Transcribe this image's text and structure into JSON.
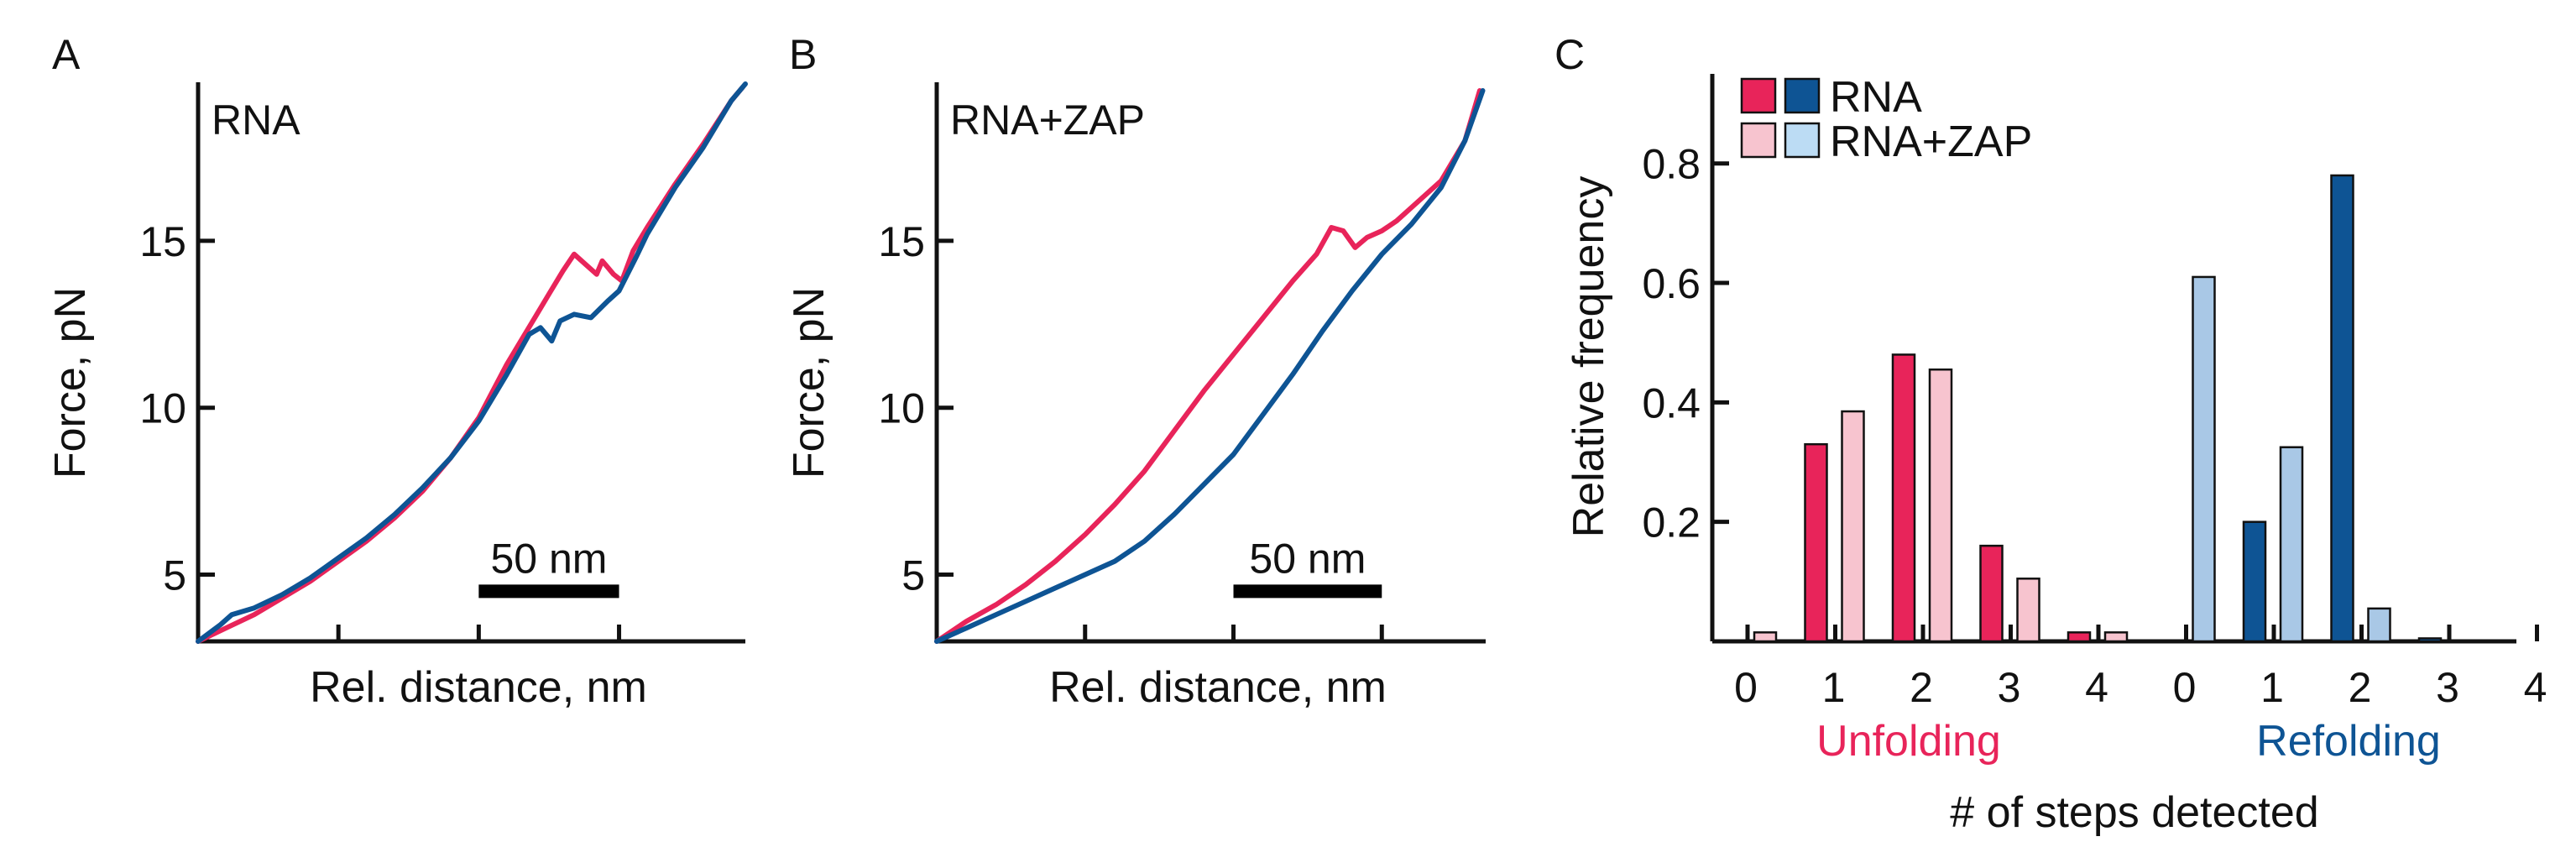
{
  "colors": {
    "unfold": "#e8245a",
    "refold": "#0e5494",
    "unfold_light": "#f7c4cf",
    "refold_light": "#bcdcf4",
    "refold_zap_bar": "#a9c8e6"
  },
  "chart_data": [
    {
      "panel": "A",
      "type": "line",
      "inset_label": "RNA",
      "xlabel": "Rel. distance, nm",
      "ylabel": "Force, pN",
      "ylim": [
        3,
        19.5
      ],
      "xlim": [
        0,
        195
      ],
      "yticks": [
        5,
        10,
        15
      ],
      "xticks": [
        50,
        100,
        150
      ],
      "scale_bar": {
        "label": "50 nm",
        "from": 100,
        "to": 150,
        "y": 4.5
      },
      "series": [
        {
          "name": "unfolding",
          "color_key": "unfold",
          "points": [
            [
              0,
              3.0
            ],
            [
              10,
              3.4
            ],
            [
              20,
              3.8
            ],
            [
              30,
              4.3
            ],
            [
              40,
              4.8
            ],
            [
              50,
              5.4
            ],
            [
              60,
              6.0
            ],
            [
              70,
              6.7
            ],
            [
              80,
              7.5
            ],
            [
              90,
              8.5
            ],
            [
              100,
              9.7
            ],
            [
              105,
              10.5
            ],
            [
              110,
              11.3
            ],
            [
              115,
              12.0
            ],
            [
              120,
              12.7
            ],
            [
              125,
              13.4
            ],
            [
              130,
              14.1
            ],
            [
              134,
              14.6
            ],
            [
              138,
              14.3
            ],
            [
              142,
              14.0
            ],
            [
              144,
              14.4
            ],
            [
              146,
              14.2
            ],
            [
              148,
              14.0
            ],
            [
              151,
              13.8
            ],
            [
              155,
              14.7
            ],
            [
              160,
              15.4
            ],
            [
              170,
              16.7
            ],
            [
              180,
              17.9
            ],
            [
              190,
              19.2
            ],
            [
              194,
              19.6
            ]
          ]
        },
        {
          "name": "refolding",
          "color_key": "refold",
          "points": [
            [
              0,
              3.0
            ],
            [
              8,
              3.5
            ],
            [
              12,
              3.8
            ],
            [
              20,
              4.0
            ],
            [
              30,
              4.4
            ],
            [
              40,
              4.9
            ],
            [
              50,
              5.5
            ],
            [
              60,
              6.1
            ],
            [
              70,
              6.8
            ],
            [
              80,
              7.6
            ],
            [
              90,
              8.5
            ],
            [
              100,
              9.6
            ],
            [
              110,
              11.0
            ],
            [
              118,
              12.2
            ],
            [
              122,
              12.4
            ],
            [
              126,
              12.0
            ],
            [
              129,
              12.6
            ],
            [
              134,
              12.8
            ],
            [
              140,
              12.7
            ],
            [
              146,
              13.2
            ],
            [
              150,
              13.5
            ],
            [
              156,
              14.5
            ],
            [
              160,
              15.2
            ],
            [
              170,
              16.6
            ],
            [
              180,
              17.8
            ],
            [
              190,
              19.2
            ],
            [
              195,
              19.7
            ]
          ]
        }
      ]
    },
    {
      "panel": "B",
      "type": "line",
      "inset_label": "RNA+ZAP",
      "xlabel": "Rel. distance, nm",
      "ylabel": "Force, pN",
      "ylim": [
        3,
        19.5
      ],
      "xlim": [
        0,
        185
      ],
      "yticks": [
        5,
        10,
        15
      ],
      "xticks": [
        50,
        100,
        150
      ],
      "scale_bar": {
        "label": "50 nm",
        "from": 100,
        "to": 150,
        "y": 4.5
      },
      "series": [
        {
          "name": "unfolding",
          "color_key": "unfold",
          "points": [
            [
              0,
              3.0
            ],
            [
              10,
              3.6
            ],
            [
              20,
              4.1
            ],
            [
              30,
              4.7
            ],
            [
              40,
              5.4
            ],
            [
              50,
              6.2
            ],
            [
              60,
              7.1
            ],
            [
              70,
              8.1
            ],
            [
              80,
              9.3
            ],
            [
              90,
              10.5
            ],
            [
              100,
              11.6
            ],
            [
              110,
              12.7
            ],
            [
              120,
              13.8
            ],
            [
              128,
              14.6
            ],
            [
              133,
              15.4
            ],
            [
              137,
              15.3
            ],
            [
              141,
              14.8
            ],
            [
              145,
              15.1
            ],
            [
              150,
              15.3
            ],
            [
              155,
              15.6
            ],
            [
              160,
              16.0
            ],
            [
              170,
              16.8
            ],
            [
              178,
              18.0
            ],
            [
              183,
              19.5
            ]
          ]
        },
        {
          "name": "refolding",
          "color_key": "refold",
          "points": [
            [
              0,
              3.0
            ],
            [
              10,
              3.4
            ],
            [
              20,
              3.8
            ],
            [
              30,
              4.2
            ],
            [
              40,
              4.6
            ],
            [
              50,
              5.0
            ],
            [
              60,
              5.4
            ],
            [
              70,
              6.0
            ],
            [
              80,
              6.8
            ],
            [
              90,
              7.7
            ],
            [
              100,
              8.6
            ],
            [
              110,
              9.8
            ],
            [
              120,
              11.0
            ],
            [
              130,
              12.3
            ],
            [
              140,
              13.5
            ],
            [
              150,
              14.6
            ],
            [
              160,
              15.5
            ],
            [
              170,
              16.6
            ],
            [
              178,
              18.0
            ],
            [
              184,
              19.5
            ]
          ]
        }
      ]
    },
    {
      "panel": "C",
      "type": "bar",
      "ylabel": "Relative frequency",
      "xlabel": "# of steps detected",
      "ylim": [
        0,
        0.95
      ],
      "yticks": [
        0.2,
        0.4,
        0.6,
        0.8
      ],
      "yticklabels": [
        "0.2",
        "0.4",
        "0.6",
        "0.8"
      ],
      "legend": {
        "position": "top-left",
        "entries": [
          {
            "label": "RNA",
            "swatches": [
              "unfold",
              "refold"
            ]
          },
          {
            "label": "RNA+ZAP",
            "swatches": [
              "unfold_light",
              "refold_light"
            ]
          }
        ]
      },
      "groups": [
        {
          "label": "Unfolding",
          "color_key": "unfold",
          "categories": [
            "0",
            "1",
            "2",
            "3",
            "4"
          ],
          "series": [
            {
              "name": "RNA",
              "color_key": "unfold",
              "values": [
                0.0,
                0.33,
                0.48,
                0.16,
                0.015
              ]
            },
            {
              "name": "RNA+ZAP",
              "color_key": "unfold_light",
              "values": [
                0.015,
                0.385,
                0.455,
                0.105,
                0.015
              ]
            }
          ]
        },
        {
          "label": "Refolding",
          "color_key": "refold",
          "categories": [
            "0",
            "1",
            "2",
            "3",
            "4"
          ],
          "series": [
            {
              "name": "RNA",
              "color_key": "refold",
              "values": [
                0.0,
                0.2,
                0.78,
                0.005,
                0.0
              ]
            },
            {
              "name": "RNA+ZAP",
              "color_key": "refold_zap_bar",
              "values": [
                0.61,
                0.325,
                0.055,
                0.0,
                0.0
              ]
            }
          ]
        }
      ]
    }
  ]
}
